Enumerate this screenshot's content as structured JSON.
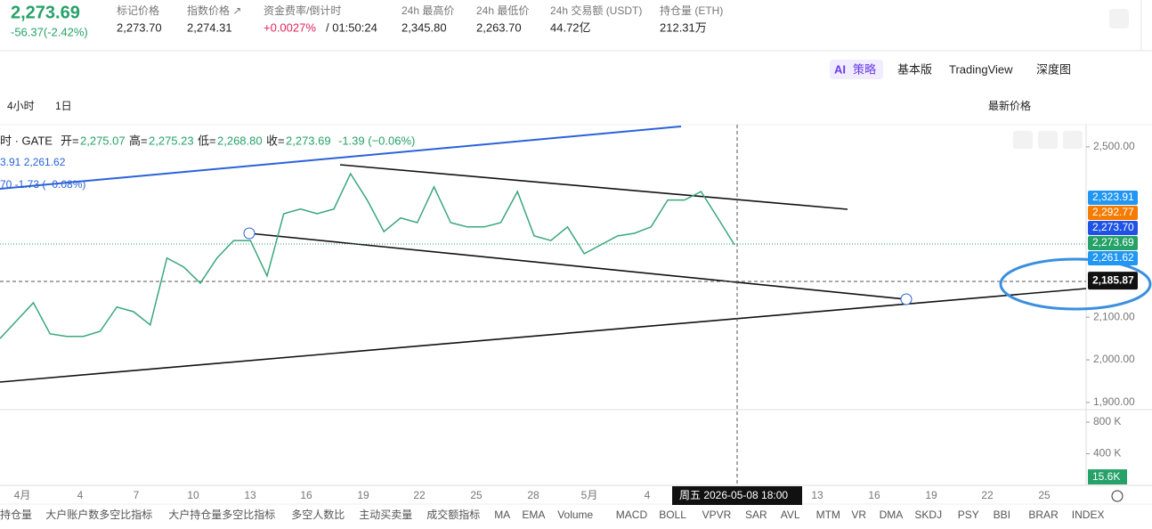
{
  "header": {
    "price": "2,273.69",
    "change": "-56.37(-2.42%)",
    "stats": [
      {
        "label": "标记价格",
        "value": "2,273.70"
      },
      {
        "label": "指数价格 ↗",
        "value": "2,274.31"
      },
      {
        "label": "资金费率/倒计时",
        "value": "+0.0027%",
        "value2": "/ 01:50:24"
      },
      {
        "label": "24h 最高价",
        "value": "2,345.80"
      },
      {
        "label": "24h 最低价",
        "value": "2,263.70"
      },
      {
        "label": "24h 交易额 (USDT)",
        "value": "44.72亿"
      },
      {
        "label": "持仓量 (ETH)",
        "value": "212.31万"
      }
    ]
  },
  "tabs": {
    "ai": "AI",
    "strategy": "策略",
    "items": [
      "基本版",
      "TradingView",
      "深度图"
    ]
  },
  "toolbar": {
    "intervals": [
      "4小时",
      "1日"
    ],
    "price_mode": "最新价格"
  },
  "legend": {
    "line1": "时 · GATE",
    "ohlc": [
      {
        "k": "开=",
        "v": "2,275.07"
      },
      {
        "k": "高=",
        "v": "2,275.23"
      },
      {
        "k": "低=",
        "v": "2,268.80"
      },
      {
        "k": "收=",
        "v": "2,273.69"
      }
    ],
    "chg": "-1.39 (−0.06%)",
    "line2": "3.91  2,261.62",
    "line3": "70  -1.73 (−0.08%)"
  },
  "chart_data": {
    "type": "line",
    "color": "#3aa87a",
    "values": [
      2050,
      2092,
      2134,
      2061,
      2055,
      2055,
      2067,
      2124,
      2113,
      2082,
      2239,
      2218,
      2180,
      2239,
      2280,
      2280,
      2197,
      2343,
      2354,
      2343,
      2354,
      2437,
      2375,
      2301,
      2333,
      2322,
      2406,
      2322,
      2312,
      2312,
      2322,
      2395,
      2291,
      2280,
      2312,
      2249,
      2270,
      2291,
      2297,
      2312,
      2375,
      2375,
      2395,
      2333,
      2270
    ],
    "ylim": [
      1883,
      2552
    ],
    "yticks": [
      {
        "value": 2500,
        "label": "2,500.00"
      },
      {
        "value": 2100,
        "label": "2,100.00"
      },
      {
        "value": 2000,
        "label": "2,000.00"
      },
      {
        "value": 1900,
        "label": "1,900.00"
      }
    ],
    "price_tags": [
      {
        "value": 2323.91,
        "label": "2,323.91",
        "color": "#2196f3"
      },
      {
        "value": 2292.77,
        "label": "2,292.77",
        "color": "#f57c00"
      },
      {
        "value": 2273.7,
        "label": "2,273.70",
        "color": "#1e53e5"
      },
      {
        "value": 2273.69,
        "label": "2,273.69",
        "color": "#26a269"
      },
      {
        "value": 2261.62,
        "label": "2,261.62",
        "color": "#2196f3"
      },
      {
        "value": 2185.87,
        "label": "2,185.87",
        "color": "#111111"
      }
    ],
    "volume_ticks": [
      {
        "value": 800000,
        "label": "800 K"
      },
      {
        "value": 400000,
        "label": "400 K"
      }
    ],
    "volume_last": {
      "value": 15600,
      "label": "15.6K"
    },
    "x_labels": [
      "4月",
      "4",
      "7",
      "10",
      "13",
      "16",
      "19",
      "22",
      "25",
      "28",
      "5月",
      "4",
      "13",
      "16",
      "19",
      "22",
      "25"
    ],
    "crosshair": "周五 2026-05-08   18:00"
  },
  "indicators": [
    "持仓量",
    "大户账户数多空比指标",
    "大户持仓量多空比指标",
    "多空人数比",
    "主动买卖量",
    "成交额指标",
    "MA",
    "EMA",
    "Volume",
    "MACD",
    "BOLL",
    "VPVR",
    "SAR",
    "AVL",
    "MTM",
    "VR",
    "DMA",
    "SKDJ",
    "PSY",
    "BBI",
    "BRAR",
    "INDEX"
  ]
}
